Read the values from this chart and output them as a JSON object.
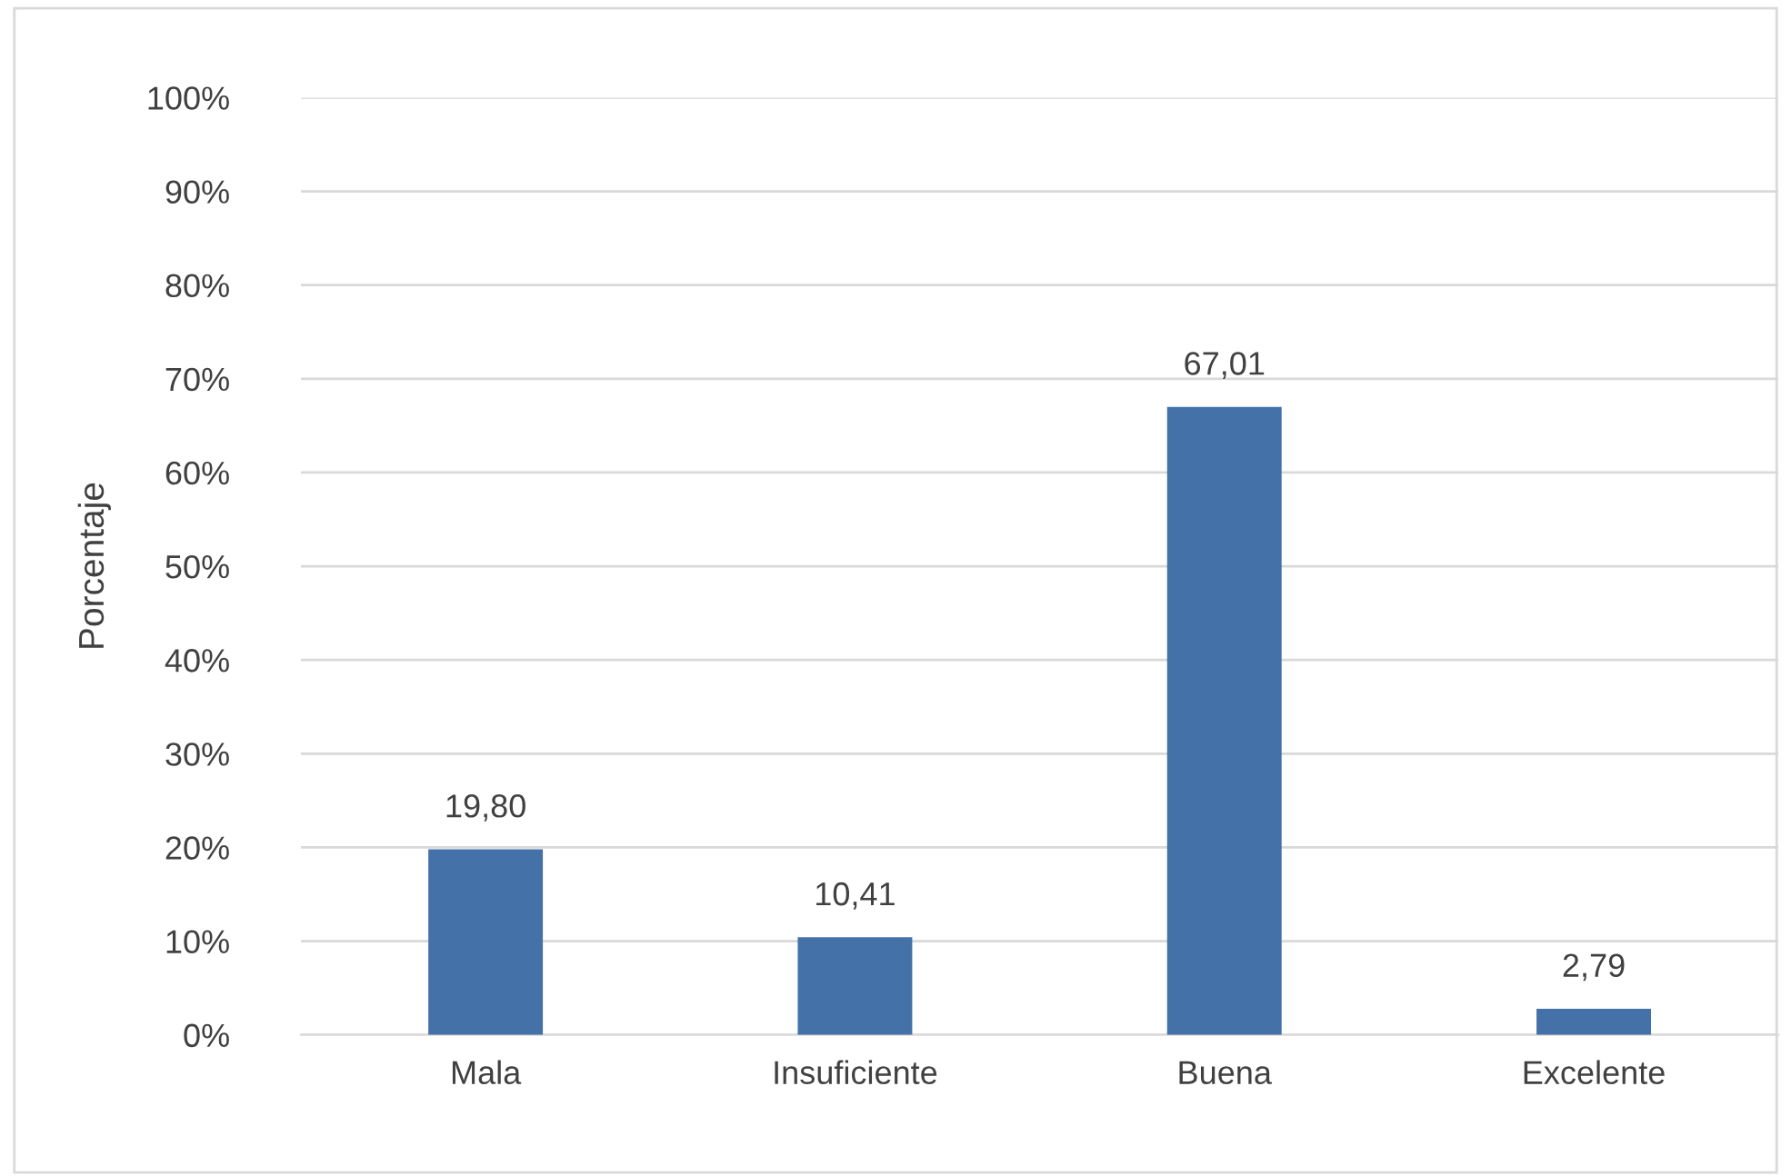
{
  "chart_data": {
    "type": "bar",
    "ylabel": "Porcentaje",
    "categories": [
      "Mala",
      "Insuficiente",
      "Buena",
      "Excelente"
    ],
    "values": [
      19.8,
      10.41,
      67.01,
      2.79
    ],
    "value_labels": [
      "19,80",
      "10,41",
      "67,01",
      "2,79"
    ],
    "color": "#4472a8",
    "ylim": [
      0,
      100
    ],
    "yticks": [
      {
        "value": 0,
        "label": "0%"
      },
      {
        "value": 10,
        "label": "10%"
      },
      {
        "value": 20,
        "label": "20%"
      },
      {
        "value": 30,
        "label": "30%"
      },
      {
        "value": 40,
        "label": "40%"
      },
      {
        "value": 50,
        "label": "50%"
      },
      {
        "value": 60,
        "label": "60%"
      },
      {
        "value": 70,
        "label": "70%"
      },
      {
        "value": 80,
        "label": "80%"
      },
      {
        "value": 90,
        "label": "90%"
      },
      {
        "value": 100,
        "label": "100%"
      }
    ],
    "grid": "y"
  }
}
